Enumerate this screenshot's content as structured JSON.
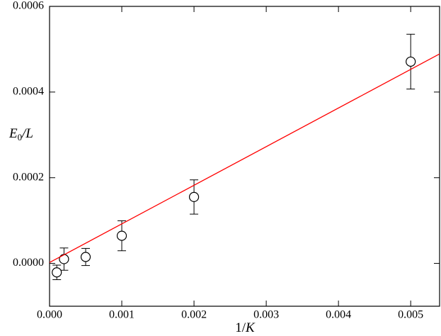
{
  "chart_data": {
    "type": "scatter",
    "xlabel": [
      "1/",
      "K"
    ],
    "ylabel": [
      "E",
      "0",
      "/L"
    ],
    "xlim": [
      0,
      0.0054
    ],
    "ylim": [
      -0.0001,
      0.0006
    ],
    "xticks": [
      {
        "value": 0,
        "label": "0.000"
      },
      {
        "value": 0.001,
        "label": "0.001"
      },
      {
        "value": 0.002,
        "label": "0.002"
      },
      {
        "value": 0.003,
        "label": "0.003"
      },
      {
        "value": 0.004,
        "label": "0.004"
      },
      {
        "value": 0.005,
        "label": "0.005"
      }
    ],
    "yticks": [
      {
        "value": 0,
        "label": "0.0000"
      },
      {
        "value": 0.0002,
        "label": "0.0002"
      },
      {
        "value": 0.0004,
        "label": "0.0004"
      },
      {
        "value": 0.0006,
        "label": "0.0006"
      }
    ],
    "series": [
      {
        "type": "scatter",
        "color": "#000000",
        "x": [
          0.0001,
          0.0002,
          0.0005,
          0.001,
          0.002,
          0.005
        ],
        "values": [
          -2.1e-05,
          1e-05,
          1.5e-05,
          6.45e-05,
          0.000155,
          0.000471
        ],
        "errors": [
          1.7e-05,
          2.6e-05,
          2e-05,
          3.5e-05,
          4e-05,
          6.4e-05
        ]
      },
      {
        "type": "line",
        "color": "#ff0000",
        "x": [
          0,
          0.0054
        ],
        "values": [
          2e-06,
          0.000489
        ]
      }
    ]
  }
}
